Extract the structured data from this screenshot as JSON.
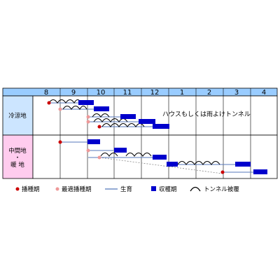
{
  "months": [
    "8",
    "9",
    "10",
    "11",
    "12",
    "1",
    "2",
    "3",
    "4"
  ],
  "regions": [
    {
      "label_lines": [
        "冷涼地"
      ]
    },
    {
      "label_lines": [
        "中間地",
        "・",
        "暖 地"
      ]
    }
  ],
  "note": "ハウスもしくは雨よけトンネル",
  "legend": {
    "sowing": "播種期",
    "best_sowing": "最適播種期",
    "growth": "生育",
    "harvest": "収穫期",
    "tunnel": "トンネル被覆"
  },
  "colors": {
    "header_bg": "#99ccff",
    "cool_bg": "#cce5ff",
    "warm_bg": "#ffccee",
    "sowing": "#cc0000",
    "best_sowing": "#ee9999",
    "growth": "#5577bb",
    "harvest": "#0000cc",
    "tunnel": "#000000"
  }
}
